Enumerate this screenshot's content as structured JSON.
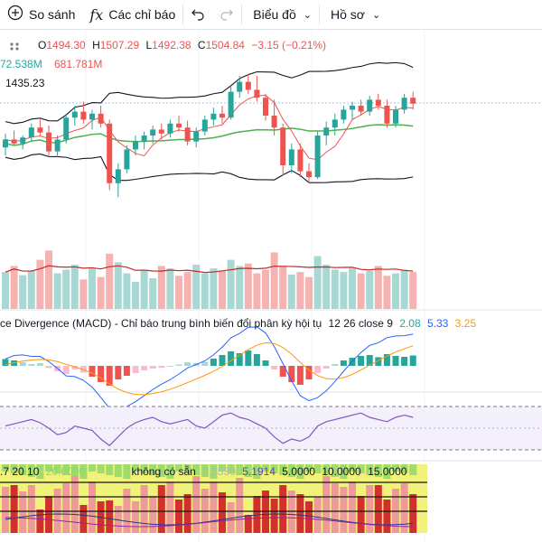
{
  "toolbar": {
    "compare": "So sánh",
    "indicators": "Các chỉ báo",
    "chart_type": "Biểu đồ",
    "profile": "Hồ sơ"
  },
  "legend": {
    "ohlc": {
      "o_label": "O",
      "o": "1494.30",
      "h_label": "H",
      "h": "1507.29",
      "l_label": "L",
      "l": "1492.38",
      "c_label": "C",
      "c": "1504.84",
      "change": "−3.15 (−0.21%)"
    },
    "vol_a": "72.538M",
    "vol_b": "681.781M",
    "ma_value": "1435.23",
    "macd_title": "ce Divergence (MACD) - Chỉ báo trung bình biến đổi phân kỳ hội tụ",
    "macd_params": "12 26 close 9",
    "macd_v1": "2.08",
    "macd_v2": "5.33",
    "macd_v3": "3.25",
    "bottom_params": ".7 20 10",
    "bottom_v0": "20.0000",
    "bottom_na": "không có sẵn",
    "bottom_v1": "5.6530",
    "bottom_v2": "5.1914",
    "bottom_v3": "5.0000",
    "bottom_v4": "10.0000",
    "bottom_v5": "15.0000"
  },
  "colors": {
    "up": "#26a69a",
    "down": "#ef5350",
    "bb": "#131722",
    "ma_fast": "#ef5350",
    "ma_slow": "#4caf50",
    "macd_line": "#2962ff",
    "signal_line": "#ff9800",
    "rsi": "#7e57c2",
    "panel_yellow": "#f5f57a",
    "panel_green": "#8bd66b"
  },
  "chart_data": {
    "type": "candlestick",
    "candles": [
      {
        "o": 1428,
        "h": 1442,
        "l": 1420,
        "c": 1436
      },
      {
        "o": 1436,
        "h": 1445,
        "l": 1430,
        "c": 1432
      },
      {
        "o": 1432,
        "h": 1440,
        "l": 1426,
        "c": 1438
      },
      {
        "o": 1438,
        "h": 1452,
        "l": 1434,
        "c": 1448
      },
      {
        "o": 1448,
        "h": 1456,
        "l": 1440,
        "c": 1443
      },
      {
        "o": 1443,
        "h": 1450,
        "l": 1420,
        "c": 1424
      },
      {
        "o": 1424,
        "h": 1440,
        "l": 1418,
        "c": 1436
      },
      {
        "o": 1436,
        "h": 1462,
        "l": 1432,
        "c": 1458
      },
      {
        "o": 1458,
        "h": 1470,
        "l": 1450,
        "c": 1464
      },
      {
        "o": 1464,
        "h": 1474,
        "l": 1452,
        "c": 1456
      },
      {
        "o": 1456,
        "h": 1466,
        "l": 1446,
        "c": 1462
      },
      {
        "o": 1462,
        "h": 1470,
        "l": 1448,
        "c": 1452
      },
      {
        "o": 1452,
        "h": 1456,
        "l": 1385,
        "c": 1392
      },
      {
        "o": 1392,
        "h": 1412,
        "l": 1378,
        "c": 1406
      },
      {
        "o": 1406,
        "h": 1430,
        "l": 1402,
        "c": 1426
      },
      {
        "o": 1426,
        "h": 1440,
        "l": 1420,
        "c": 1434
      },
      {
        "o": 1434,
        "h": 1444,
        "l": 1426,
        "c": 1440
      },
      {
        "o": 1440,
        "h": 1450,
        "l": 1432,
        "c": 1446
      },
      {
        "o": 1446,
        "h": 1452,
        "l": 1436,
        "c": 1442
      },
      {
        "o": 1442,
        "h": 1456,
        "l": 1438,
        "c": 1452
      },
      {
        "o": 1452,
        "h": 1460,
        "l": 1444,
        "c": 1448
      },
      {
        "o": 1448,
        "h": 1455,
        "l": 1430,
        "c": 1434
      },
      {
        "o": 1434,
        "h": 1448,
        "l": 1428,
        "c": 1444
      },
      {
        "o": 1444,
        "h": 1460,
        "l": 1440,
        "c": 1456
      },
      {
        "o": 1456,
        "h": 1468,
        "l": 1450,
        "c": 1462
      },
      {
        "o": 1462,
        "h": 1470,
        "l": 1452,
        "c": 1458
      },
      {
        "o": 1458,
        "h": 1490,
        "l": 1456,
        "c": 1484
      },
      {
        "o": 1484,
        "h": 1500,
        "l": 1478,
        "c": 1494
      },
      {
        "o": 1494,
        "h": 1502,
        "l": 1482,
        "c": 1486
      },
      {
        "o": 1486,
        "h": 1500,
        "l": 1474,
        "c": 1478
      },
      {
        "o": 1478,
        "h": 1482,
        "l": 1455,
        "c": 1460
      },
      {
        "o": 1460,
        "h": 1476,
        "l": 1440,
        "c": 1448
      },
      {
        "o": 1448,
        "h": 1452,
        "l": 1400,
        "c": 1410
      },
      {
        "o": 1410,
        "h": 1432,
        "l": 1402,
        "c": 1426
      },
      {
        "o": 1426,
        "h": 1432,
        "l": 1398,
        "c": 1404
      },
      {
        "o": 1404,
        "h": 1412,
        "l": 1392,
        "c": 1398
      },
      {
        "o": 1398,
        "h": 1444,
        "l": 1396,
        "c": 1440
      },
      {
        "o": 1440,
        "h": 1454,
        "l": 1430,
        "c": 1448
      },
      {
        "o": 1448,
        "h": 1462,
        "l": 1440,
        "c": 1456
      },
      {
        "o": 1456,
        "h": 1470,
        "l": 1452,
        "c": 1466
      },
      {
        "o": 1466,
        "h": 1474,
        "l": 1456,
        "c": 1470
      },
      {
        "o": 1470,
        "h": 1476,
        "l": 1460,
        "c": 1464
      },
      {
        "o": 1464,
        "h": 1480,
        "l": 1460,
        "c": 1476
      },
      {
        "o": 1476,
        "h": 1482,
        "l": 1466,
        "c": 1470
      },
      {
        "o": 1470,
        "h": 1476,
        "l": 1448,
        "c": 1452
      },
      {
        "o": 1452,
        "h": 1470,
        "l": 1448,
        "c": 1466
      },
      {
        "o": 1466,
        "h": 1482,
        "l": 1462,
        "c": 1478
      },
      {
        "o": 1478,
        "h": 1484,
        "l": 1466,
        "c": 1472
      }
    ],
    "volume": [
      60,
      70,
      55,
      62,
      80,
      95,
      58,
      64,
      72,
      48,
      66,
      52,
      90,
      76,
      58,
      44,
      62,
      50,
      70,
      66,
      54,
      60,
      72,
      58,
      66,
      62,
      80,
      70,
      74,
      58,
      64,
      92,
      70,
      56,
      60,
      52,
      86,
      72,
      64,
      60,
      66,
      58,
      62,
      70,
      54,
      58,
      64,
      60
    ],
    "macd_hist": [
      1.5,
      1.2,
      0.8,
      0.4,
      0.6,
      -0.5,
      -1.2,
      -1.8,
      -0.8,
      -1.5,
      -2.4,
      -3.6,
      -4.4,
      -3.0,
      -2.2,
      -1.6,
      -1.0,
      -0.6,
      -0.4,
      -0.2,
      0.3,
      0.8,
      0.6,
      0.9,
      1.6,
      2.4,
      3.2,
      2.8,
      3.4,
      2.6,
      1.2,
      -0.8,
      -2.4,
      -3.6,
      -4.2,
      -3.0,
      -1.6,
      -0.6,
      0.4,
      1.2,
      1.8,
      2.2,
      2.4,
      1.9,
      2.6,
      2.2,
      2.0,
      2.3
    ],
    "rsi": [
      52,
      54,
      56,
      58,
      55,
      50,
      44,
      46,
      52,
      50,
      48,
      40,
      34,
      42,
      50,
      55,
      58,
      60,
      56,
      54,
      56,
      58,
      52,
      50,
      56,
      62,
      64,
      60,
      58,
      54,
      50,
      42,
      36,
      40,
      38,
      42,
      52,
      56,
      58,
      60,
      62,
      64,
      60,
      58,
      56,
      60,
      62,
      60
    ]
  }
}
